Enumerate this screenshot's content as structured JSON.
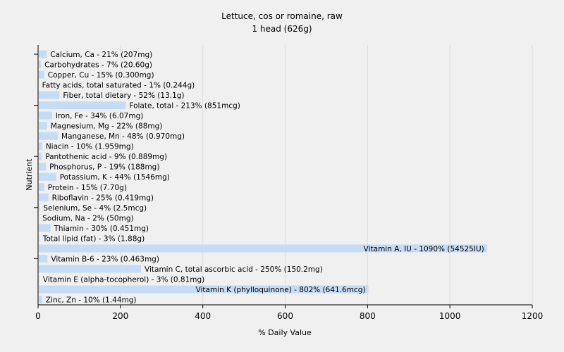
{
  "chart_data": {
    "type": "bar",
    "orientation": "horizontal",
    "title": "Lettuce, cos or romaine, raw",
    "subtitle": "1 head (626g)",
    "xlabel": "% Daily Value",
    "ylabel": "Nutrient",
    "xlim": [
      0,
      1200
    ],
    "xticks": [
      "0",
      "200",
      "400",
      "600",
      "800",
      "1000",
      "1200"
    ],
    "grid": true,
    "colors": {
      "bar": "#c6dcf5",
      "grid": "#dddddd",
      "axis": "#000000",
      "background": "#f0f0f0"
    },
    "categories": [
      "Calcium, Ca",
      "Carbohydrates",
      "Copper, Cu",
      "Fatty acids, total saturated",
      "Fiber, total dietary",
      "Folate, total",
      "Iron, Fe",
      "Magnesium, Mg",
      "Manganese, Mn",
      "Niacin",
      "Pantothenic acid",
      "Phosphorus, P",
      "Potassium, K",
      "Protein",
      "Riboflavin",
      "Selenium, Se",
      "Sodium, Na",
      "Thiamin",
      "Total lipid (fat)",
      "Vitamin A, IU",
      "Vitamin B-6",
      "Vitamin C, total ascorbic acid",
      "Vitamin E (alpha-tocopherol)",
      "Vitamin K (phylloquinone)",
      "Zinc, Zn"
    ],
    "values": [
      21,
      7,
      15,
      1,
      52,
      213,
      34,
      22,
      48,
      10,
      9,
      19,
      44,
      15,
      25,
      4,
      2,
      30,
      3,
      1090,
      23,
      250,
      3,
      802,
      10
    ],
    "labels": [
      "Calcium, Ca - 21% (207mg)",
      "Carbohydrates - 7% (20.60g)",
      "Copper, Cu - 15% (0.300mg)",
      "Fatty acids, total saturated - 1% (0.244g)",
      "Fiber, total dietary - 52% (13.1g)",
      "Folate, total - 213% (851mcg)",
      "Iron, Fe - 34% (6.07mg)",
      "Magnesium, Mg - 22% (88mg)",
      "Manganese, Mn - 48% (0.970mg)",
      "Niacin - 10% (1.959mg)",
      "Pantothenic acid - 9% (0.889mg)",
      "Phosphorus, P - 19% (188mg)",
      "Potassium, K - 44% (1546mg)",
      "Protein - 15% (7.70g)",
      "Riboflavin - 25% (0.419mg)",
      "Selenium, Se - 4% (2.5mcg)",
      "Sodium, Na - 2% (50mg)",
      "Thiamin - 30% (0.451mg)",
      "Total lipid (fat) - 3% (1.88g)",
      "Vitamin A, IU - 1090% (54525IU)",
      "Vitamin B-6 - 23% (0.463mg)",
      "Vitamin C, total ascorbic acid - 250% (150.2mg)",
      "Vitamin E (alpha-tocopherol) - 3% (0.81mg)",
      "Vitamin K (phylloquinone) - 802% (641.6mcg)",
      "Zinc, Zn - 10% (1.44mg)"
    ]
  }
}
